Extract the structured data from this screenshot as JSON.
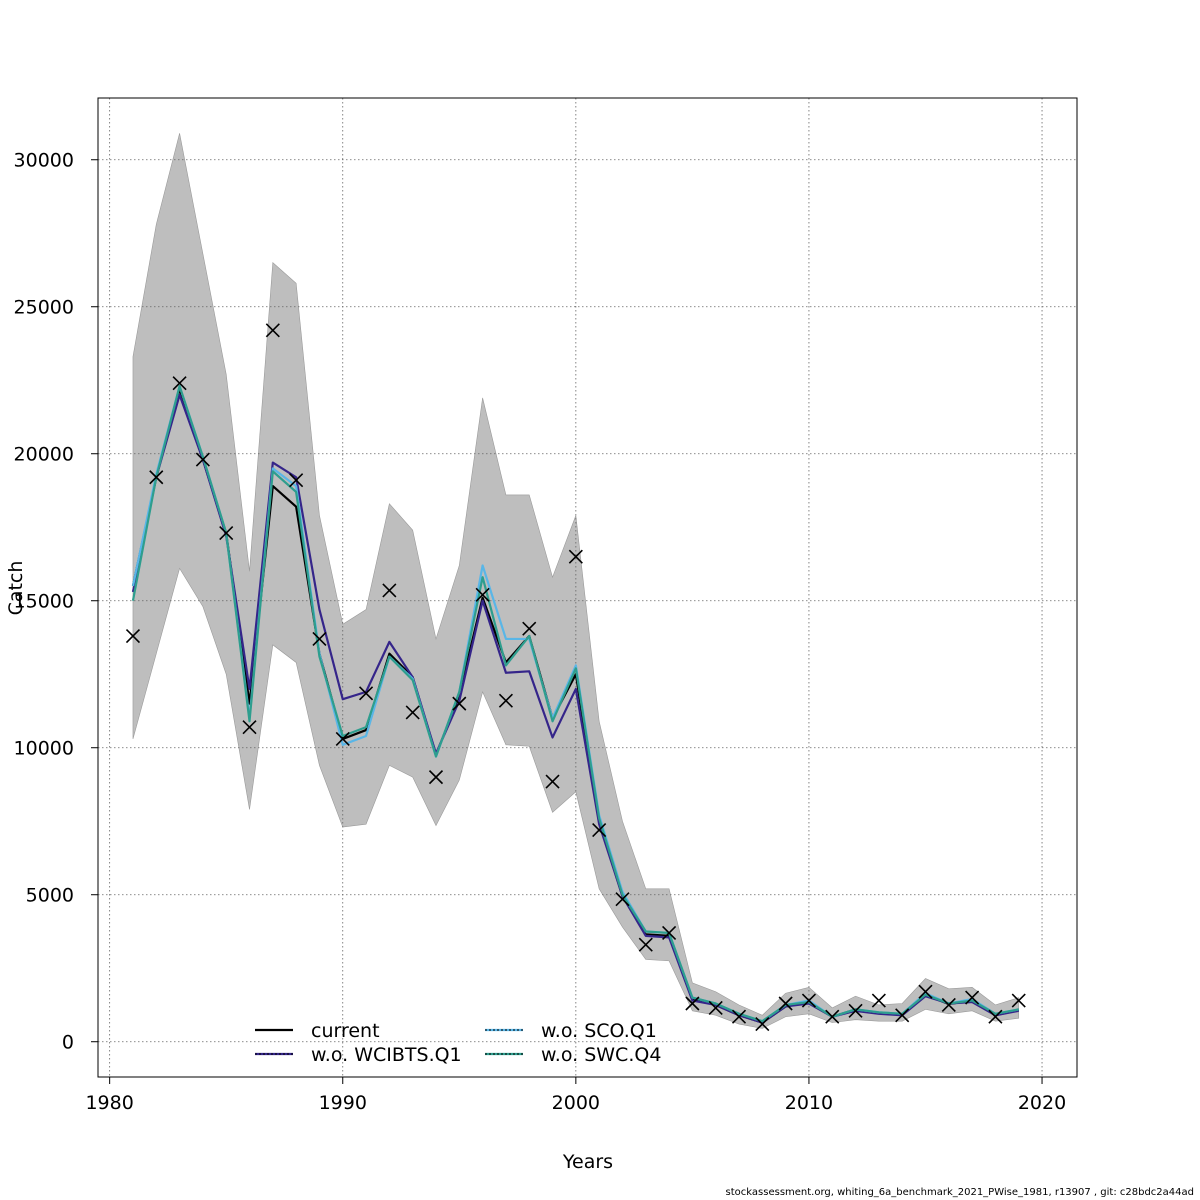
{
  "chart_data": {
    "type": "line",
    "xlabel": "Years",
    "ylabel": "Catch",
    "xlim": [
      1979.5,
      2021.5
    ],
    "ylim": [
      -1200,
      32100
    ],
    "xticks": [
      1980,
      1990,
      2000,
      2010,
      2020
    ],
    "yticks": [
      0,
      5000,
      10000,
      15000,
      20000,
      25000,
      30000
    ],
    "grid": true,
    "legend_position": "bottom-center",
    "x": [
      1981,
      1982,
      1983,
      1984,
      1985,
      1986,
      1987,
      1988,
      1989,
      1990,
      1991,
      1992,
      1993,
      1994,
      1995,
      1996,
      1997,
      1998,
      1999,
      2000,
      2001,
      2002,
      2003,
      2004,
      2005,
      2006,
      2007,
      2008,
      2009,
      2010,
      2011,
      2012,
      2013,
      2014,
      2015,
      2016,
      2017,
      2018,
      2019
    ],
    "band": {
      "color": "#bebebe",
      "lower": [
        10300,
        13200,
        16100,
        14800,
        12500,
        7900,
        13500,
        12900,
        9400,
        7300,
        7400,
        9400,
        9000,
        7350,
        8900,
        11900,
        10100,
        10050,
        7800,
        8500,
        5200,
        3900,
        2800,
        2750,
        1050,
        900,
        600,
        450,
        850,
        950,
        650,
        750,
        700,
        700,
        1100,
        950,
        1050,
        700,
        800
      ],
      "upper": [
        23300,
        27800,
        30900,
        26800,
        22700,
        16000,
        26500,
        25800,
        17900,
        14200,
        14700,
        18300,
        17400,
        13700,
        16200,
        21900,
        18600,
        18600,
        15800,
        17900,
        10900,
        7500,
        5200,
        5200,
        2000,
        1700,
        1250,
        900,
        1650,
        1850,
        1150,
        1550,
        1250,
        1300,
        2150,
        1800,
        1850,
        1250,
        1500
      ]
    },
    "series": [
      {
        "name": "current",
        "color": "#000000",
        "dash": "",
        "width": 2.2,
        "values": [
          15500,
          19200,
          22200,
          19800,
          17300,
          11500,
          18900,
          18200,
          13200,
          10300,
          10600,
          13200,
          12400,
          9750,
          11800,
          15100,
          12900,
          13800,
          11000,
          12500,
          7500,
          4950,
          3650,
          3600,
          1450,
          1250,
          900,
          650,
          1200,
          1350,
          850,
          1100,
          980,
          930,
          1600,
          1280,
          1400,
          900,
          1080
        ]
      },
      {
        "name": "w.o. WCIBTS.Q1",
        "color": "#35258a",
        "dash": "",
        "width": 2.2,
        "values": [
          15300,
          19200,
          22000,
          19800,
          17200,
          12000,
          19700,
          19200,
          14700,
          11650,
          11900,
          13600,
          12400,
          9800,
          11600,
          15000,
          12550,
          12600,
          10350,
          12000,
          7400,
          4950,
          3600,
          3550,
          1400,
          1250,
          900,
          650,
          1200,
          1300,
          850,
          1050,
          950,
          900,
          1550,
          1300,
          1350,
          900,
          1050
        ]
      },
      {
        "name": "w.o. SCO.Q1",
        "color": "#59b6e7",
        "dash": "",
        "width": 2.2,
        "values": [
          15500,
          19300,
          22300,
          19900,
          17300,
          11000,
          19500,
          18900,
          13200,
          10100,
          10400,
          13100,
          12350,
          9700,
          11900,
          16200,
          13700,
          13700,
          11000,
          12800,
          7700,
          5100,
          3750,
          3700,
          1500,
          1300,
          950,
          700,
          1250,
          1400,
          850,
          1100,
          1000,
          950,
          1650,
          1300,
          1450,
          950,
          1100
        ]
      },
      {
        "name": "w.o. SWC.Q4",
        "color": "#2e9e8e",
        "dash": "",
        "width": 2.2,
        "values": [
          15000,
          19200,
          22300,
          19900,
          17300,
          10900,
          19400,
          18700,
          13100,
          10400,
          10700,
          13100,
          12300,
          9700,
          11900,
          15800,
          12800,
          13800,
          10900,
          12700,
          7600,
          5000,
          3750,
          3700,
          1500,
          1300,
          950,
          700,
          1250,
          1350,
          850,
          1100,
          1000,
          950,
          1600,
          1300,
          1400,
          950,
          1100
        ]
      }
    ],
    "observed": {
      "marker": "x",
      "color": "#000000",
      "values": [
        13800,
        19200,
        22400,
        19800,
        17300,
        10700,
        24200,
        19100,
        13700,
        10300,
        11850,
        15350,
        11200,
        9000,
        11500,
        15200,
        11600,
        14050,
        8850,
        16500,
        7200,
        4850,
        3300,
        3700,
        1300,
        1150,
        850,
        600,
        1300,
        1400,
        850,
        1050,
        1400,
        900,
        1700,
        1250,
        1500,
        850,
        1400
      ]
    }
  },
  "footer": {
    "text": "stockassessment.org, whiting_6a_benchmark_2021_PWise_1981, r13907 , git: c28bdc2a44ad"
  }
}
